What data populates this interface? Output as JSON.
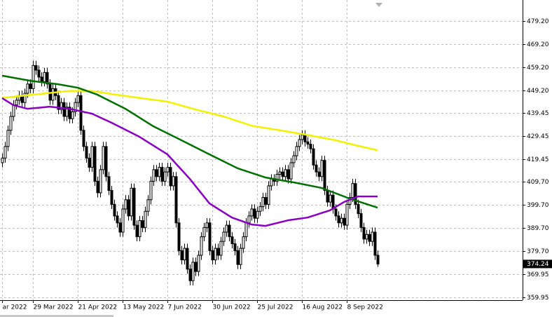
{
  "chart_data": {
    "type": "candlestick",
    "ylim": [
      358.6,
      488.3
    ],
    "yticks": [
      {
        "value": 479.2,
        "label": "479.20"
      },
      {
        "value": 469.2,
        "label": "469.20"
      },
      {
        "value": 459.2,
        "label": "459.20"
      },
      {
        "value": 449.2,
        "label": "449.20"
      },
      439.45,
      429.45,
      419.45,
      {
        "value": 409.7,
        "label": "409.70"
      },
      {
        "value": 399.7,
        "label": "399.70"
      },
      {
        "value": 389.7,
        "label": "389.70"
      },
      {
        "value": 379.7,
        "label": "379.70"
      },
      369.95,
      359.95
    ],
    "grid": true,
    "candle_up_color": "#ffffff",
    "candle_down_color": "#000000",
    "categories": [
      "ar 2022",
      null,
      null,
      null,
      null,
      null,
      null,
      null,
      null,
      null,
      null,
      "29 Mar 2022",
      null,
      null,
      null,
      null,
      null,
      null,
      null,
      null,
      null,
      null,
      null,
      null,
      null,
      null,
      null,
      "21 Apr 2022",
      null,
      null,
      null,
      null,
      null,
      null,
      null,
      null,
      null,
      null,
      null,
      null,
      null,
      null,
      null,
      "13 May 2022",
      null,
      null,
      null,
      null,
      null,
      null,
      null,
      null,
      null,
      null,
      null,
      null,
      null,
      null,
      null,
      "7 Jun 2022",
      null,
      null,
      null,
      null,
      null,
      null,
      null,
      null,
      null,
      null,
      null,
      null,
      null,
      null,
      null,
      "30 Jun 2022",
      null,
      null,
      null,
      null,
      null,
      null,
      null,
      null,
      null,
      null,
      null,
      null,
      null,
      null,
      null,
      "25 Jul 2022",
      null,
      null,
      null,
      null,
      null,
      null,
      null,
      null,
      null,
      null,
      null,
      null,
      null,
      null,
      null,
      "16 Aug 2022",
      null,
      null,
      null,
      null,
      null,
      null,
      null,
      null,
      null,
      null,
      null,
      null,
      null,
      null,
      null,
      "8 Sep 2022",
      null,
      null,
      null,
      null,
      null,
      null,
      null,
      null,
      null,
      null,
      null
    ],
    "candles": [
      [
        418,
        422,
        416,
        420
      ],
      [
        420,
        427,
        418,
        425
      ],
      [
        425,
        434,
        423,
        432
      ],
      [
        432,
        440,
        430,
        438
      ],
      [
        438,
        445,
        436,
        443
      ],
      [
        443,
        447,
        441,
        445
      ],
      [
        445,
        449,
        443,
        447
      ],
      [
        447,
        449,
        442,
        444
      ],
      [
        444,
        450,
        442,
        448
      ],
      [
        448,
        454,
        446,
        452
      ],
      [
        452,
        454,
        448,
        450
      ],
      [
        450,
        462,
        448,
        460
      ],
      [
        460,
        462,
        456,
        458
      ],
      [
        458,
        460,
        453,
        455
      ],
      [
        455,
        457,
        451,
        453
      ],
      [
        453,
        459,
        451,
        457
      ],
      [
        457,
        459,
        450,
        452
      ],
      [
        452,
        454,
        443,
        445
      ],
      [
        445,
        452,
        443,
        450
      ],
      [
        450,
        452,
        445,
        447
      ],
      [
        447,
        449,
        439,
        441
      ],
      [
        441,
        446,
        439,
        444
      ],
      [
        444,
        446,
        436,
        438
      ],
      [
        438,
        444,
        436,
        442
      ],
      [
        442,
        444,
        435,
        437
      ],
      [
        437,
        442,
        435,
        440
      ],
      [
        440,
        446,
        438,
        444
      ],
      [
        444,
        449,
        442,
        447
      ],
      [
        447,
        449,
        430,
        432
      ],
      [
        432,
        434,
        423,
        425
      ],
      [
        425,
        427,
        418,
        420
      ],
      [
        420,
        422,
        414,
        416
      ],
      [
        416,
        427,
        414,
        425
      ],
      [
        425,
        427,
        408,
        410
      ],
      [
        410,
        412,
        403,
        405
      ],
      [
        405,
        417,
        403,
        415
      ],
      [
        415,
        427,
        413,
        425
      ],
      [
        425,
        427,
        410,
        412
      ],
      [
        412,
        414,
        404,
        406
      ],
      [
        406,
        408,
        398,
        400
      ],
      [
        400,
        402,
        393,
        395
      ],
      [
        395,
        397,
        390,
        392
      ],
      [
        392,
        394,
        386,
        388
      ],
      [
        388,
        400,
        386,
        398
      ],
      [
        398,
        404,
        396,
        402
      ],
      [
        402,
        404,
        393,
        395
      ],
      [
        395,
        409,
        393,
        407
      ],
      [
        407,
        409,
        389,
        391
      ],
      [
        391,
        393,
        384,
        386
      ],
      [
        386,
        395,
        384,
        393
      ],
      [
        393,
        395,
        388,
        390
      ],
      [
        390,
        399,
        388,
        397
      ],
      [
        397,
        404,
        395,
        402
      ],
      [
        402,
        412,
        400,
        410
      ],
      [
        410,
        417,
        408,
        415
      ],
      [
        415,
        417,
        410,
        412
      ],
      [
        412,
        418,
        410,
        416
      ],
      [
        416,
        418,
        408,
        410
      ],
      [
        410,
        416,
        408,
        414
      ],
      [
        414,
        418,
        412,
        416
      ],
      [
        416,
        418,
        406,
        408
      ],
      [
        408,
        414,
        406,
        412
      ],
      [
        412,
        414,
        390,
        392
      ],
      [
        392,
        394,
        378,
        380
      ],
      [
        380,
        382,
        374,
        376
      ],
      [
        376,
        383,
        374,
        381
      ],
      [
        381,
        383,
        370,
        372
      ],
      [
        372,
        374,
        365,
        367
      ],
      [
        367,
        377,
        365,
        375
      ],
      [
        375,
        377,
        369,
        371
      ],
      [
        371,
        380,
        369,
        378
      ],
      [
        378,
        388,
        376,
        386
      ],
      [
        386,
        392,
        384,
        390
      ],
      [
        390,
        394,
        388,
        392
      ],
      [
        392,
        394,
        378,
        380
      ],
      [
        380,
        382,
        374,
        376
      ],
      [
        376,
        383,
        374,
        381
      ],
      [
        381,
        383,
        376,
        378
      ],
      [
        378,
        386,
        376,
        384
      ],
      [
        384,
        390,
        382,
        388
      ],
      [
        388,
        393,
        386,
        391
      ],
      [
        391,
        393,
        384,
        386
      ],
      [
        386,
        388,
        381,
        383
      ],
      [
        383,
        385,
        378,
        380
      ],
      [
        380,
        382,
        372,
        374
      ],
      [
        374,
        383,
        372,
        381
      ],
      [
        381,
        388,
        379,
        386
      ],
      [
        386,
        394,
        384,
        392
      ],
      [
        392,
        397,
        390,
        395
      ],
      [
        395,
        400,
        393,
        398
      ],
      [
        398,
        400,
        392,
        394
      ],
      [
        394,
        399,
        392,
        397
      ],
      [
        397,
        401,
        395,
        399
      ],
      [
        399,
        405,
        397,
        403
      ],
      [
        403,
        405,
        398,
        400
      ],
      [
        400,
        410,
        398,
        408
      ],
      [
        408,
        413,
        406,
        411
      ],
      [
        411,
        413,
        408,
        410
      ],
      [
        410,
        415,
        408,
        413
      ],
      [
        413,
        416,
        411,
        414
      ],
      [
        414,
        416,
        410,
        412
      ],
      [
        412,
        417,
        410,
        415
      ],
      [
        415,
        417,
        409,
        411
      ],
      [
        411,
        420,
        409,
        418
      ],
      [
        418,
        423,
        416,
        421
      ],
      [
        421,
        427,
        419,
        425
      ],
      [
        425,
        430,
        423,
        428
      ],
      [
        428,
        432,
        426,
        430
      ],
      [
        430,
        432,
        425,
        427
      ],
      [
        427,
        429,
        424,
        426
      ],
      [
        426,
        428,
        422,
        424
      ],
      [
        424,
        426,
        415,
        417
      ],
      [
        417,
        419,
        412,
        414
      ],
      [
        414,
        416,
        410,
        412
      ],
      [
        412,
        421,
        410,
        419
      ],
      [
        419,
        421,
        404,
        406
      ],
      [
        406,
        408,
        399,
        401
      ],
      [
        401,
        406,
        399,
        404
      ],
      [
        404,
        406,
        396,
        398
      ],
      [
        398,
        400,
        393,
        395
      ],
      [
        395,
        397,
        390,
        392
      ],
      [
        392,
        396,
        390,
        394
      ],
      [
        394,
        396,
        389,
        391
      ],
      [
        391,
        402,
        389,
        400
      ],
      [
        400,
        405,
        398,
        403
      ],
      [
        403,
        411,
        401,
        409
      ],
      [
        409,
        411,
        398,
        400
      ],
      [
        400,
        402,
        394,
        396
      ],
      [
        396,
        398,
        388,
        390
      ],
      [
        390,
        392,
        383,
        385
      ],
      [
        385,
        389,
        383,
        387
      ],
      [
        387,
        389,
        382,
        384
      ],
      [
        384,
        390,
        382,
        388
      ],
      [
        388,
        390,
        376,
        378
      ],
      [
        378,
        380,
        373,
        374.24
      ]
    ],
    "series": [
      {
        "color": "#f2f200",
        "x": [
          0,
          12,
          24,
          32,
          40,
          49,
          59,
          69,
          79,
          89,
          99,
          109,
          119,
          127,
          134
        ],
        "values": [
          446,
          447.5,
          449,
          449,
          447.5,
          446,
          444.4,
          441,
          438,
          434,
          432,
          430,
          427.7,
          425.3,
          423.4
        ]
      },
      {
        "color": "#007000",
        "x": [
          0,
          10,
          20,
          27,
          34,
          44,
          54,
          64,
          74,
          84,
          94,
          104,
          114,
          124,
          134
        ],
        "values": [
          455.6,
          453.4,
          451.9,
          450.4,
          447.4,
          441.3,
          433.7,
          427.7,
          421.6,
          415.6,
          411.6,
          409.5,
          407.1,
          402.5,
          398.6
        ]
      },
      {
        "color": "#8a00c4",
        "x": [
          0,
          4,
          9,
          17,
          24,
          32,
          39,
          49,
          59,
          67,
          74,
          82,
          89,
          94,
          102,
          109,
          117,
          122,
          127,
          134
        ],
        "values": [
          445.9,
          442.9,
          441.3,
          442.2,
          441.3,
          439.2,
          435.3,
          429.2,
          421.6,
          411.0,
          400.4,
          394.3,
          391.3,
          390.7,
          393.1,
          394.3,
          397.4,
          401.0,
          403.4,
          403.4
        ]
      }
    ]
  }
}
